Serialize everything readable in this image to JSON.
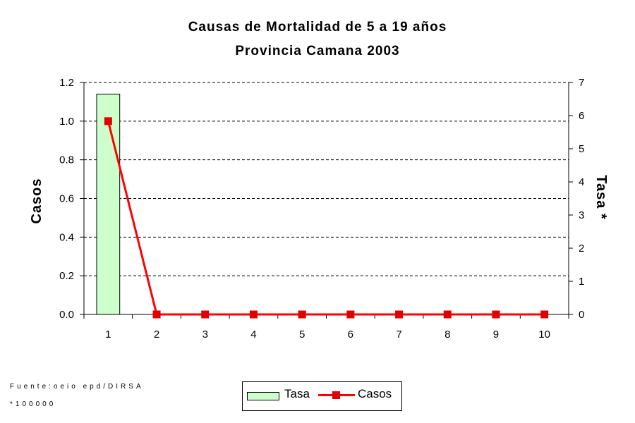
{
  "chart_data": {
    "type": "bar+line",
    "title": "Causas de Mortalidad de 5 a 19 años",
    "subtitle": "Provincia Camana 2003",
    "categories": [
      "1",
      "2",
      "3",
      "4",
      "5",
      "6",
      "7",
      "8",
      "9",
      "10"
    ],
    "series": [
      {
        "name": "Tasa",
        "type": "bar",
        "axis": "right",
        "color": "#ccffcc",
        "values": [
          6.65,
          0,
          0,
          0,
          0,
          0,
          0,
          0,
          0,
          0
        ]
      },
      {
        "name": "Casos",
        "type": "line",
        "axis": "left",
        "color": "#ff0000",
        "values": [
          1,
          0,
          0,
          0,
          0,
          0,
          0,
          0,
          0,
          0
        ]
      }
    ],
    "ylabel": "Casos",
    "y2label": "Tasa *",
    "ylim": [
      0,
      1.2
    ],
    "yticks": [
      "0.0",
      "0.2",
      "0.4",
      "0.6",
      "0.8",
      "1.0",
      "1.2"
    ],
    "y2lim": [
      0,
      7
    ],
    "y2ticks": [
      "0",
      "1",
      "2",
      "3",
      "4",
      "5",
      "6",
      "7"
    ],
    "grid": "horizontal dashed",
    "legend": "bottom"
  },
  "footer": {
    "source": "Fuente:oeio epd/DIRSA",
    "note": "*100000"
  }
}
